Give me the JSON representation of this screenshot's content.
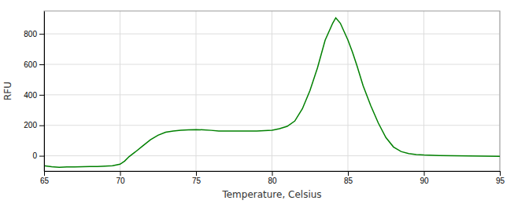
{
  "chart_data": {
    "type": "line",
    "xlabel": "Temperature, Celsius",
    "ylabel": "RFU",
    "x": [
      65.0,
      65.5,
      66.0,
      66.5,
      67.0,
      67.5,
      68.0,
      68.5,
      69.0,
      69.5,
      70.0,
      70.3,
      70.6,
      71.0,
      71.5,
      72.0,
      72.5,
      73.0,
      73.5,
      74.0,
      74.5,
      75.0,
      75.5,
      76.0,
      76.5,
      77.0,
      77.5,
      78.0,
      78.5,
      79.0,
      79.5,
      80.0,
      80.2,
      80.5,
      81.0,
      81.5,
      82.0,
      82.5,
      83.0,
      83.5,
      84.0,
      84.2,
      84.5,
      85.0,
      85.3,
      85.6,
      86.0,
      86.5,
      87.0,
      87.5,
      88.0,
      88.5,
      89.0,
      89.5,
      90.0,
      91.0,
      92.0,
      93.0,
      94.0,
      95.0
    ],
    "values": [
      -65,
      -72,
      -75,
      -73,
      -73,
      -72,
      -71,
      -70,
      -68,
      -65,
      -55,
      -35,
      -5,
      25,
      65,
      105,
      135,
      155,
      163,
      168,
      170,
      172,
      170,
      167,
      163,
      162,
      162,
      162,
      163,
      163,
      165,
      168,
      172,
      178,
      193,
      228,
      308,
      428,
      578,
      758,
      870,
      905,
      870,
      760,
      680,
      590,
      460,
      330,
      215,
      120,
      58,
      28,
      15,
      8,
      5,
      2,
      0,
      -1,
      -2,
      -3
    ],
    "color": "#008000",
    "xlim": [
      65,
      95
    ],
    "ylim": [
      -100,
      950
    ],
    "xticks": [
      65,
      70,
      75,
      80,
      85,
      90,
      95
    ],
    "yticks": [
      0,
      200,
      400,
      600,
      800
    ],
    "grid": true
  }
}
